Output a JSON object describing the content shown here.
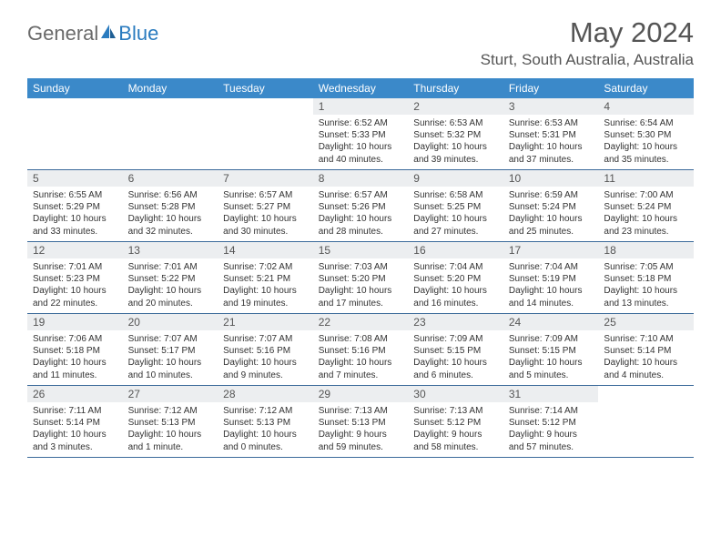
{
  "logo": {
    "general": "General",
    "blue": "Blue"
  },
  "title": "May 2024",
  "location": "Sturt, South Australia, Australia",
  "colors": {
    "header_bg": "#3b89c9",
    "border": "#3b6a9a",
    "daynum_bg": "#eceef0",
    "text_dark": "#323232",
    "text_mid": "#555555",
    "logo_gray": "#6a6a6a",
    "logo_blue": "#2a7bbf"
  },
  "dayNames": [
    "Sunday",
    "Monday",
    "Tuesday",
    "Wednesday",
    "Thursday",
    "Friday",
    "Saturday"
  ],
  "weeks": [
    [
      {
        "blank": true
      },
      {
        "blank": true
      },
      {
        "blank": true
      },
      {
        "num": "1",
        "sunrise": "Sunrise: 6:52 AM",
        "sunset": "Sunset: 5:33 PM",
        "daylight": "Daylight: 10 hours and 40 minutes."
      },
      {
        "num": "2",
        "sunrise": "Sunrise: 6:53 AM",
        "sunset": "Sunset: 5:32 PM",
        "daylight": "Daylight: 10 hours and 39 minutes."
      },
      {
        "num": "3",
        "sunrise": "Sunrise: 6:53 AM",
        "sunset": "Sunset: 5:31 PM",
        "daylight": "Daylight: 10 hours and 37 minutes."
      },
      {
        "num": "4",
        "sunrise": "Sunrise: 6:54 AM",
        "sunset": "Sunset: 5:30 PM",
        "daylight": "Daylight: 10 hours and 35 minutes."
      }
    ],
    [
      {
        "num": "5",
        "sunrise": "Sunrise: 6:55 AM",
        "sunset": "Sunset: 5:29 PM",
        "daylight": "Daylight: 10 hours and 33 minutes."
      },
      {
        "num": "6",
        "sunrise": "Sunrise: 6:56 AM",
        "sunset": "Sunset: 5:28 PM",
        "daylight": "Daylight: 10 hours and 32 minutes."
      },
      {
        "num": "7",
        "sunrise": "Sunrise: 6:57 AM",
        "sunset": "Sunset: 5:27 PM",
        "daylight": "Daylight: 10 hours and 30 minutes."
      },
      {
        "num": "8",
        "sunrise": "Sunrise: 6:57 AM",
        "sunset": "Sunset: 5:26 PM",
        "daylight": "Daylight: 10 hours and 28 minutes."
      },
      {
        "num": "9",
        "sunrise": "Sunrise: 6:58 AM",
        "sunset": "Sunset: 5:25 PM",
        "daylight": "Daylight: 10 hours and 27 minutes."
      },
      {
        "num": "10",
        "sunrise": "Sunrise: 6:59 AM",
        "sunset": "Sunset: 5:24 PM",
        "daylight": "Daylight: 10 hours and 25 minutes."
      },
      {
        "num": "11",
        "sunrise": "Sunrise: 7:00 AM",
        "sunset": "Sunset: 5:24 PM",
        "daylight": "Daylight: 10 hours and 23 minutes."
      }
    ],
    [
      {
        "num": "12",
        "sunrise": "Sunrise: 7:01 AM",
        "sunset": "Sunset: 5:23 PM",
        "daylight": "Daylight: 10 hours and 22 minutes."
      },
      {
        "num": "13",
        "sunrise": "Sunrise: 7:01 AM",
        "sunset": "Sunset: 5:22 PM",
        "daylight": "Daylight: 10 hours and 20 minutes."
      },
      {
        "num": "14",
        "sunrise": "Sunrise: 7:02 AM",
        "sunset": "Sunset: 5:21 PM",
        "daylight": "Daylight: 10 hours and 19 minutes."
      },
      {
        "num": "15",
        "sunrise": "Sunrise: 7:03 AM",
        "sunset": "Sunset: 5:20 PM",
        "daylight": "Daylight: 10 hours and 17 minutes."
      },
      {
        "num": "16",
        "sunrise": "Sunrise: 7:04 AM",
        "sunset": "Sunset: 5:20 PM",
        "daylight": "Daylight: 10 hours and 16 minutes."
      },
      {
        "num": "17",
        "sunrise": "Sunrise: 7:04 AM",
        "sunset": "Sunset: 5:19 PM",
        "daylight": "Daylight: 10 hours and 14 minutes."
      },
      {
        "num": "18",
        "sunrise": "Sunrise: 7:05 AM",
        "sunset": "Sunset: 5:18 PM",
        "daylight": "Daylight: 10 hours and 13 minutes."
      }
    ],
    [
      {
        "num": "19",
        "sunrise": "Sunrise: 7:06 AM",
        "sunset": "Sunset: 5:18 PM",
        "daylight": "Daylight: 10 hours and 11 minutes."
      },
      {
        "num": "20",
        "sunrise": "Sunrise: 7:07 AM",
        "sunset": "Sunset: 5:17 PM",
        "daylight": "Daylight: 10 hours and 10 minutes."
      },
      {
        "num": "21",
        "sunrise": "Sunrise: 7:07 AM",
        "sunset": "Sunset: 5:16 PM",
        "daylight": "Daylight: 10 hours and 9 minutes."
      },
      {
        "num": "22",
        "sunrise": "Sunrise: 7:08 AM",
        "sunset": "Sunset: 5:16 PM",
        "daylight": "Daylight: 10 hours and 7 minutes."
      },
      {
        "num": "23",
        "sunrise": "Sunrise: 7:09 AM",
        "sunset": "Sunset: 5:15 PM",
        "daylight": "Daylight: 10 hours and 6 minutes."
      },
      {
        "num": "24",
        "sunrise": "Sunrise: 7:09 AM",
        "sunset": "Sunset: 5:15 PM",
        "daylight": "Daylight: 10 hours and 5 minutes."
      },
      {
        "num": "25",
        "sunrise": "Sunrise: 7:10 AM",
        "sunset": "Sunset: 5:14 PM",
        "daylight": "Daylight: 10 hours and 4 minutes."
      }
    ],
    [
      {
        "num": "26",
        "sunrise": "Sunrise: 7:11 AM",
        "sunset": "Sunset: 5:14 PM",
        "daylight": "Daylight: 10 hours and 3 minutes."
      },
      {
        "num": "27",
        "sunrise": "Sunrise: 7:12 AM",
        "sunset": "Sunset: 5:13 PM",
        "daylight": "Daylight: 10 hours and 1 minute."
      },
      {
        "num": "28",
        "sunrise": "Sunrise: 7:12 AM",
        "sunset": "Sunset: 5:13 PM",
        "daylight": "Daylight: 10 hours and 0 minutes."
      },
      {
        "num": "29",
        "sunrise": "Sunrise: 7:13 AM",
        "sunset": "Sunset: 5:13 PM",
        "daylight": "Daylight: 9 hours and 59 minutes."
      },
      {
        "num": "30",
        "sunrise": "Sunrise: 7:13 AM",
        "sunset": "Sunset: 5:12 PM",
        "daylight": "Daylight: 9 hours and 58 minutes."
      },
      {
        "num": "31",
        "sunrise": "Sunrise: 7:14 AM",
        "sunset": "Sunset: 5:12 PM",
        "daylight": "Daylight: 9 hours and 57 minutes."
      },
      {
        "blank": true
      }
    ]
  ]
}
